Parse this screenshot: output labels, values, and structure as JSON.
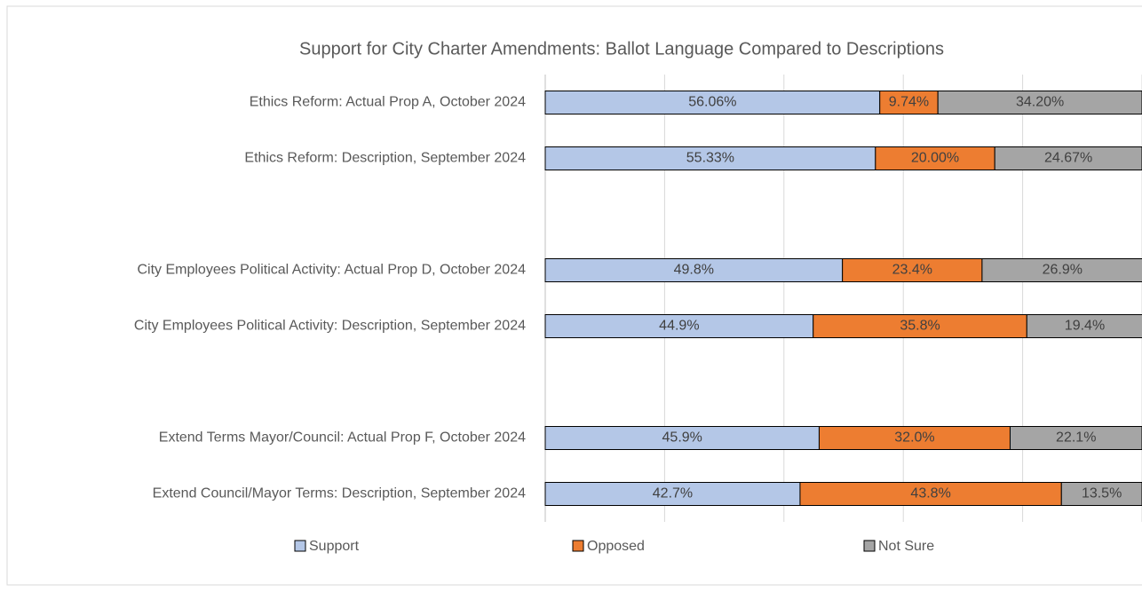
{
  "chart_data": {
    "type": "stacked-bar-horizontal",
    "title": "Support for City Charter Amendments: Ballot Language Compared to Descriptions",
    "categories": [
      "Ethics Reform: Actual Prop A, October 2024",
      "Ethics Reform: Description, September 2024",
      null,
      "City Employees Political Activity: Actual Prop D, October 2024",
      "City Employees Political Activity: Description, September 2024",
      null,
      "Extend Terms Mayor/Council: Actual Prop F, October 2024",
      "Extend Council/Mayor Terms: Description, September 2024"
    ],
    "series": [
      {
        "name": "Support",
        "color": "#b4c7e7",
        "values": [
          56.06,
          55.33,
          null,
          49.8,
          44.9,
          null,
          45.9,
          42.7
        ],
        "value_labels": [
          "56.06%",
          "55.33%",
          null,
          "49.8%",
          "44.9%",
          null,
          "45.9%",
          "42.7%"
        ]
      },
      {
        "name": "Opposed",
        "color": "#ed7d31",
        "values": [
          9.74,
          20,
          null,
          23.4,
          35.8,
          null,
          32,
          43.8
        ],
        "value_labels": [
          "9.74%",
          "20.00%",
          null,
          "23.4%",
          "35.8%",
          null,
          "32.0%",
          "43.8%"
        ]
      },
      {
        "name": "Not Sure",
        "color": "#a5a5a5",
        "values": [
          34.2,
          24.67,
          null,
          26.9,
          19.4,
          null,
          22.1,
          13.5
        ],
        "value_labels": [
          "34.20%",
          "24.67%",
          null,
          "26.9%",
          "19.4%",
          null,
          "22.1%",
          "13.5%"
        ]
      }
    ],
    "xlim": [
      0,
      100
    ],
    "xticks": [
      0,
      20,
      40,
      60,
      80,
      100
    ],
    "grid": true,
    "legend": "bottom"
  }
}
